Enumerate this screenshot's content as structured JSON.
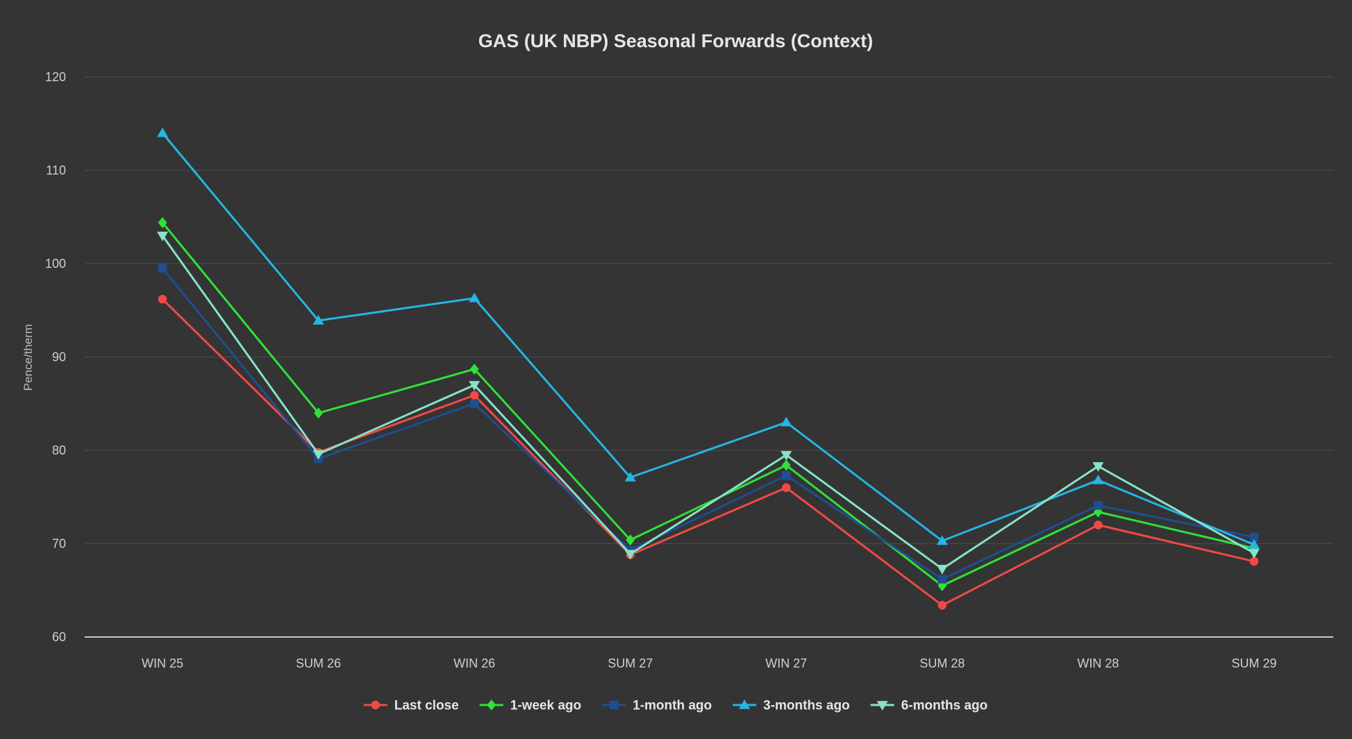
{
  "chart_data": {
    "type": "line",
    "title": "GAS (UK NBP) Seasonal Forwards (Context)",
    "xlabel": "",
    "ylabel": "Pence/therm",
    "ylim": [
      60,
      120
    ],
    "yticks": [
      60,
      70,
      80,
      90,
      100,
      110,
      120
    ],
    "grid": true,
    "legend_position": "bottom-center",
    "categories": [
      "WIN 25",
      "SUM 26",
      "WIN 26",
      "SUM 27",
      "WIN 27",
      "SUM 28",
      "WIN 28",
      "SUM 29"
    ],
    "series": [
      {
        "name": "Last close",
        "color": "#f04a46",
        "marker": "circle",
        "values": [
          96.2,
          79.8,
          85.9,
          68.8,
          76.0,
          63.4,
          72.0,
          68.1
        ]
      },
      {
        "name": "1-week ago",
        "color": "#2ee23a",
        "marker": "diamond",
        "values": [
          104.4,
          84.0,
          88.7,
          70.4,
          78.4,
          65.5,
          73.4,
          69.5
        ]
      },
      {
        "name": "1-month ago",
        "color": "#1f4e91",
        "marker": "square",
        "values": [
          99.5,
          79.1,
          85.0,
          69.3,
          77.3,
          66.2,
          74.1,
          70.7
        ]
      },
      {
        "name": "3-months ago",
        "color": "#25b6e3",
        "marker": "triangle-up",
        "values": [
          114.0,
          93.9,
          96.3,
          77.1,
          83.0,
          70.3,
          76.8,
          69.9
        ]
      },
      {
        "name": "6-months ago",
        "color": "#88e3c6",
        "marker": "triangle-down",
        "values": [
          103.0,
          79.6,
          87.0,
          68.9,
          79.5,
          67.3,
          78.3,
          69.0
        ]
      }
    ]
  }
}
